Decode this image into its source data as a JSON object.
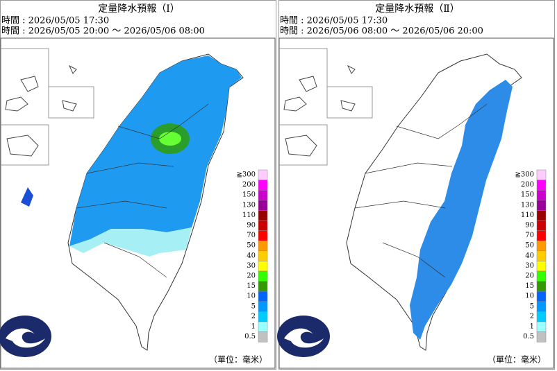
{
  "panels": [
    {
      "title": "定量降水預報（Ⅰ）",
      "issued": "時間 : 2026/05/05 17:30",
      "valid": "時間 : 2026/05/05 20:00 ～ 2026/05/06 08:00"
    },
    {
      "title": "定量降水預報（Ⅱ）",
      "issued": "時間 : 2026/05/05 17:30",
      "valid": "時間 : 2026/05/06 08:00 ～ 2026/05/06 20:00"
    }
  ],
  "legend": {
    "labels": [
      "≧300",
      "200",
      "150",
      "130",
      "110",
      "90",
      "70",
      "50",
      "40",
      "30",
      "20",
      "15",
      "10",
      "5",
      "2",
      "1",
      "0.5"
    ],
    "colors": [
      "#ffccff",
      "#ff00ff",
      "#cc00cc",
      "#990099",
      "#990000",
      "#cc0000",
      "#ff0000",
      "#ff9900",
      "#ffcc00",
      "#ffff00",
      "#33ff00",
      "#339900",
      "#0066ff",
      "#0099ff",
      "#00ccff",
      "#99ffff",
      "#c1c1c1"
    ]
  },
  "unit": "（單位：毫米）"
}
